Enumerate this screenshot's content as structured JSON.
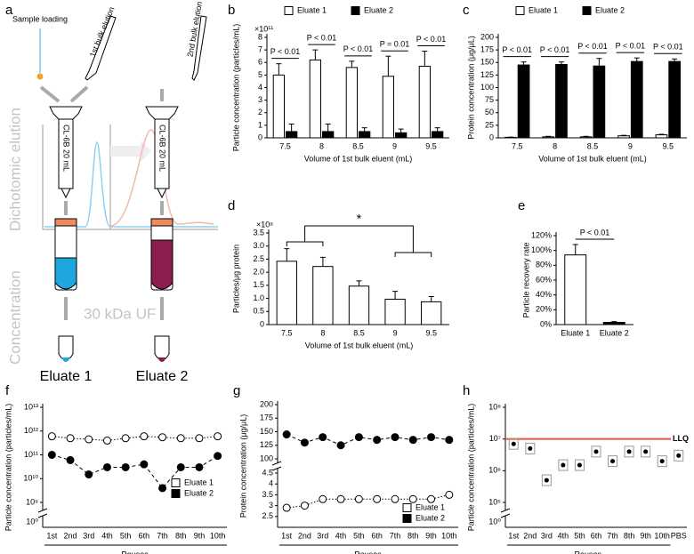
{
  "diagram": {
    "label": "a",
    "sample_loading": "Sample loading",
    "first_elution": "1st bulk elution",
    "second_elution": "2nd bulk elution",
    "column_1": "CL-6B 20 mL",
    "column_2": "CL-6B 20 mL",
    "stage_1": "Dichotomic elution",
    "stage_2": "Concentration",
    "filtration": "30 kDa UF",
    "output_1": "Eluate 1",
    "output_2": "Eluate 2"
  },
  "chart_data": [
    {
      "label": "b",
      "type": "bar",
      "y_label": "Particle concentration (particles/mL)",
      "multiplier": "×10¹¹",
      "x_label": "Volume of 1st bulk eluent (mL)",
      "categories": [
        "7.5",
        "8",
        "8.5",
        "9",
        "9.5"
      ],
      "series": [
        {
          "name": "Eluate 1",
          "color": "#ffffff",
          "values": [
            5.0,
            6.2,
            5.6,
            4.9,
            5.7
          ],
          "errors": [
            0.9,
            0.8,
            0.5,
            1.6,
            1.2
          ]
        },
        {
          "name": "Eluate 2",
          "color": "#000000",
          "values": [
            0.5,
            0.5,
            0.5,
            0.4,
            0.5
          ],
          "errors": [
            0.6,
            0.6,
            0.3,
            0.3,
            0.3
          ]
        }
      ],
      "annotations": [
        "P < 0.01",
        "P < 0.01",
        "P < 0.01",
        "P = 0.01",
        "P < 0.01"
      ],
      "ylim": [
        0,
        8
      ],
      "yticks": [
        0,
        1,
        2,
        3,
        4,
        5,
        6,
        7,
        8
      ],
      "legend": "top"
    },
    {
      "label": "c",
      "type": "bar",
      "y_label": "Protein concentration (μg/μL)",
      "x_label": "Volume of 1st bulk eluent (mL)",
      "categories": [
        "7.5",
        "8",
        "8.5",
        "9",
        "9.5"
      ],
      "series": [
        {
          "name": "Eluate 1",
          "color": "#ffffff",
          "values": [
            1,
            2,
            2,
            4,
            6
          ],
          "errors": [
            0.5,
            1,
            1,
            1,
            1
          ]
        },
        {
          "name": "Eluate 2",
          "color": "#000000",
          "values": [
            145,
            146,
            143,
            152,
            152
          ],
          "errors": [
            6,
            5,
            15,
            7,
            5
          ]
        }
      ],
      "annotations": [
        "P < 0.01",
        "P < 0.01",
        "P < 0.01",
        "P < 0.01",
        "P < 0.01"
      ],
      "ylim": [
        0,
        200
      ],
      "yticks": [
        0,
        25,
        50,
        75,
        100,
        125,
        150,
        175,
        200
      ],
      "legend": "top"
    },
    {
      "label": "d",
      "type": "bar",
      "y_label": "Particles/μg protein",
      "multiplier": "×10⁸",
      "x_label": "Volume of 1st bulk eluent (mL)",
      "categories": [
        "7.5",
        "8",
        "8.5",
        "9",
        "9.5"
      ],
      "values": [
        2.42,
        2.22,
        1.47,
        0.97,
        0.87
      ],
      "errors": [
        0.48,
        0.35,
        0.2,
        0.3,
        0.2
      ],
      "color": "#ffffff",
      "annotation": "*",
      "ylim": [
        0,
        3.5
      ],
      "yticks": [
        0,
        0.5,
        {
          "value": 1,
          "label": "1.0"
        },
        1.5,
        {
          "value": 2,
          "label": "2.0"
        },
        2.5,
        {
          "value": 3,
          "label": "3.0"
        },
        3.5
      ]
    },
    {
      "label": "e",
      "type": "bar",
      "y_label": "Particle recovery rate",
      "categories": [
        "Eluate 1",
        "Eluate 2"
      ],
      "values": [
        94,
        3
      ],
      "errors": [
        14,
        1
      ],
      "colors": [
        "#ffffff",
        "#000000"
      ],
      "annotation": "P < 0.01",
      "ylim": [
        0,
        120
      ],
      "yticks": [
        {
          "value": 0,
          "label": "0%"
        },
        {
          "value": 20,
          "label": "20%"
        },
        {
          "value": 40,
          "label": "40%"
        },
        {
          "value": 60,
          "label": "60%"
        },
        {
          "value": 80,
          "label": "80%"
        },
        {
          "value": 100,
          "label": "100%"
        },
        {
          "value": 120,
          "label": "120%"
        }
      ]
    },
    {
      "label": "f",
      "type": "line",
      "y_label": "Particle concentration (particles/mL)",
      "x_label": "Reuses",
      "log": true,
      "break_label": "10⁰",
      "categories": [
        "1st",
        "2nd",
        "3rd",
        "4th",
        "5th",
        "6th",
        "7th",
        "8th",
        "9th",
        "10th"
      ],
      "series": [
        {
          "name": "Eluate 1",
          "color": "#ffffff",
          "values": [
            600000000000,
            500000000000,
            450000000000,
            400000000000,
            500000000000,
            600000000000,
            550000000000,
            500000000000,
            500000000000,
            600000000000
          ]
        },
        {
          "name": "Eluate 2",
          "color": "#000000",
          "values": [
            100000000000,
            60000000000,
            15000000000,
            30000000000,
            30000000000,
            40000000000,
            4000000000,
            30000000000,
            30000000000,
            90000000000
          ]
        }
      ],
      "ylim": [
        1000000000,
        10000000000000
      ],
      "yticks": [
        {
          "value": 1000000000,
          "label": "10⁹"
        },
        {
          "value": 10000000000,
          "label": "10¹⁰"
        },
        {
          "value": 100000000000,
          "label": "10¹¹"
        },
        {
          "value": 1000000000000,
          "label": "10¹²"
        },
        {
          "value": 10000000000000,
          "label": "10¹³"
        }
      ],
      "legend": "bottom-right"
    },
    {
      "label": "g",
      "type": "line",
      "y_label": "Protein concentration (μg/μL)",
      "x_label": "Reuses",
      "categories": [
        "1st",
        "2nd",
        "3rd",
        "4th",
        "5th",
        "6th",
        "7th",
        "8th",
        "9th",
        "10th"
      ],
      "series": [
        {
          "name": "Eluate 1",
          "color": "#ffffff",
          "values": [
            2.9,
            3.0,
            3.3,
            3.3,
            3.3,
            3.3,
            3.3,
            3.3,
            3.3,
            3.5
          ]
        },
        {
          "name": "Eluate 2",
          "color": "#000000",
          "values": [
            145,
            130,
            140,
            125,
            140,
            135,
            140,
            135,
            140,
            135
          ]
        }
      ],
      "ylim": [
        2,
        4.5
      ],
      "yticks": [
        2.5,
        3,
        3.5,
        4,
        4.5
      ],
      "ylim_top": [
        100,
        200
      ],
      "yticks_top": [
        100,
        125,
        150,
        175,
        200
      ],
      "legend": "bottom-right"
    },
    {
      "label": "h",
      "type": "dot",
      "y_label": "Particle concentration (particles/mL)",
      "x_label": "Reuses",
      "log": true,
      "break_label": "10⁰",
      "categories": [
        "1st",
        "2nd",
        "3rd",
        "4th",
        "5th",
        "6th",
        "7th",
        "8th",
        "9th",
        "10th",
        "PBS"
      ],
      "values": [
        7000000,
        5000000,
        500000,
        1500000,
        1500000,
        4000000,
        2000000,
        4000000,
        4000000,
        2000000,
        3000000
      ],
      "color": "#000000",
      "ref_line": {
        "value": 10000000,
        "label": "LLQ",
        "color": "#e8553f"
      },
      "ylim": [
        100000,
        100000000
      ],
      "yticks": [
        {
          "value": 100000,
          "label": "10⁵"
        },
        {
          "value": 1000000,
          "label": "10⁶"
        },
        {
          "value": 10000000,
          "label": "10⁷"
        },
        {
          "value": 100000000,
          "label": "10⁸"
        }
      ]
    }
  ]
}
